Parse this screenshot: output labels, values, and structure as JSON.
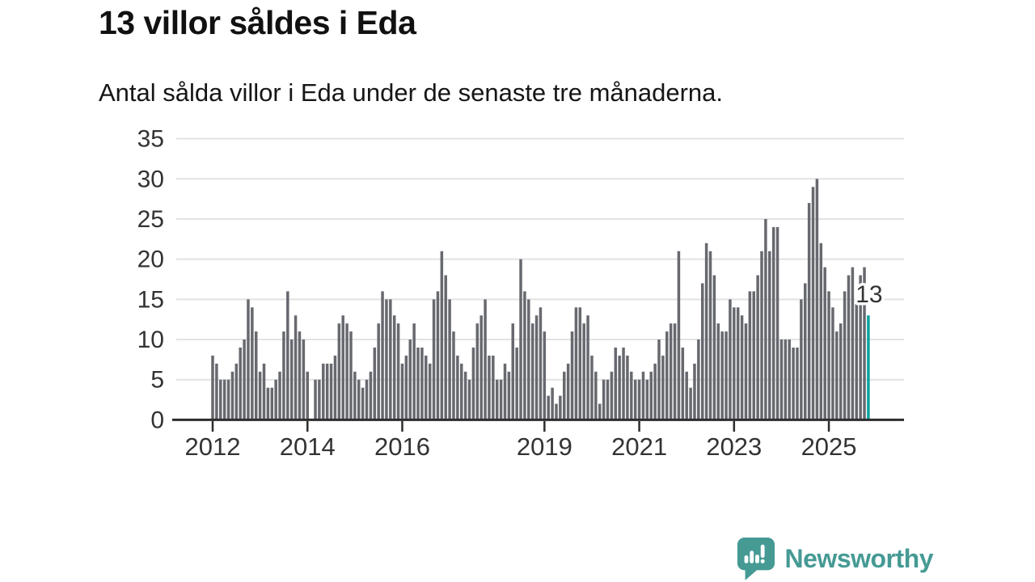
{
  "header": {
    "title": "13 villor såldes i Eda",
    "subtitle": "Antal sålda villor i Eda under de senaste tre månaderna."
  },
  "branding": {
    "name": "Newsworthy",
    "icon": "bar-chart-speech-bubble-icon",
    "color": "#459a94"
  },
  "colors": {
    "bar": "#67696f",
    "highlight": "#0ba29d",
    "grid": "#e2e2e2",
    "axis": "#2d2d2d",
    "tick_text": "#333333",
    "annotation_text": "#333333",
    "background": "#ffffff"
  },
  "chart_data": {
    "type": "bar",
    "x_unit": "month",
    "x_start": "2012-01",
    "x_end": "2025-11",
    "x_tick_labels": [
      "2012",
      "2014",
      "2016",
      "2019",
      "2021",
      "2023",
      "2025"
    ],
    "y_ticks": [
      0,
      5,
      10,
      15,
      20,
      25,
      30,
      35
    ],
    "ylim": [
      0,
      35
    ],
    "grid": true,
    "legend": "none",
    "highlight_last": true,
    "last_value_label": "13",
    "series": [
      {
        "name": "Antal sålda villor, rullande tre månader",
        "values": [
          8,
          7,
          5,
          5,
          5,
          6,
          7,
          9,
          10,
          15,
          14,
          11,
          6,
          7,
          4,
          4,
          5,
          6,
          11,
          16,
          10,
          13,
          11,
          10,
          6,
          0,
          5,
          5,
          7,
          7,
          7,
          8,
          12,
          13,
          12,
          11,
          6,
          5,
          4,
          5,
          6,
          9,
          12,
          16,
          15,
          15,
          13,
          12,
          7,
          8,
          10,
          12,
          9,
          9,
          8,
          7,
          15,
          16,
          21,
          18,
          15,
          11,
          8,
          7,
          6,
          5,
          9,
          12,
          13,
          15,
          8,
          8,
          5,
          5,
          7,
          6,
          12,
          9,
          20,
          16,
          15,
          12,
          13,
          14,
          11,
          3,
          4,
          2,
          3,
          6,
          7,
          11,
          14,
          14,
          12,
          13,
          8,
          6,
          2,
          5,
          5,
          6,
          9,
          8,
          9,
          8,
          6,
          5,
          5,
          6,
          5,
          6,
          7,
          10,
          8,
          11,
          12,
          12,
          21,
          9,
          6,
          4,
          7,
          10,
          17,
          22,
          21,
          18,
          12,
          11,
          11,
          15,
          14,
          14,
          13,
          12,
          16,
          16,
          18,
          21,
          25,
          21,
          24,
          24,
          10,
          10,
          10,
          9,
          9,
          15,
          17,
          27,
          29,
          30,
          22,
          19,
          16,
          14,
          11,
          12,
          16,
          18,
          19,
          15,
          18,
          19,
          13
        ]
      }
    ]
  }
}
